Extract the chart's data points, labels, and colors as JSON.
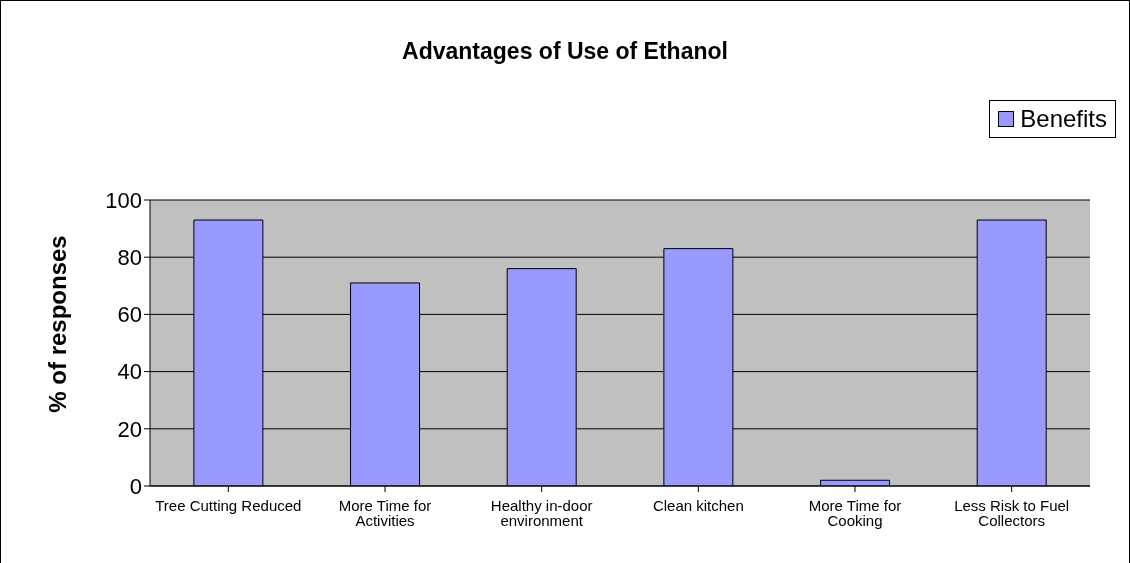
{
  "chart_data": {
    "type": "bar",
    "title": "Advantages of Use of Ethanol",
    "ylabel": "% of responses",
    "categories": [
      "Tree Cutting Reduced",
      "More Time for Activities",
      "Healthy in-door environment",
      "Clean kitchen",
      "More Time for Cooking",
      "Less Risk to Fuel Collectors"
    ],
    "series": [
      {
        "name": "Benefits",
        "color": "#9999ff",
        "values": [
          93,
          71,
          76,
          83,
          2,
          93
        ]
      }
    ],
    "ylim": [
      0,
      100
    ],
    "yticks": [
      0,
      20,
      40,
      60,
      80,
      100
    ],
    "grid": "y",
    "legend": "top right"
  }
}
